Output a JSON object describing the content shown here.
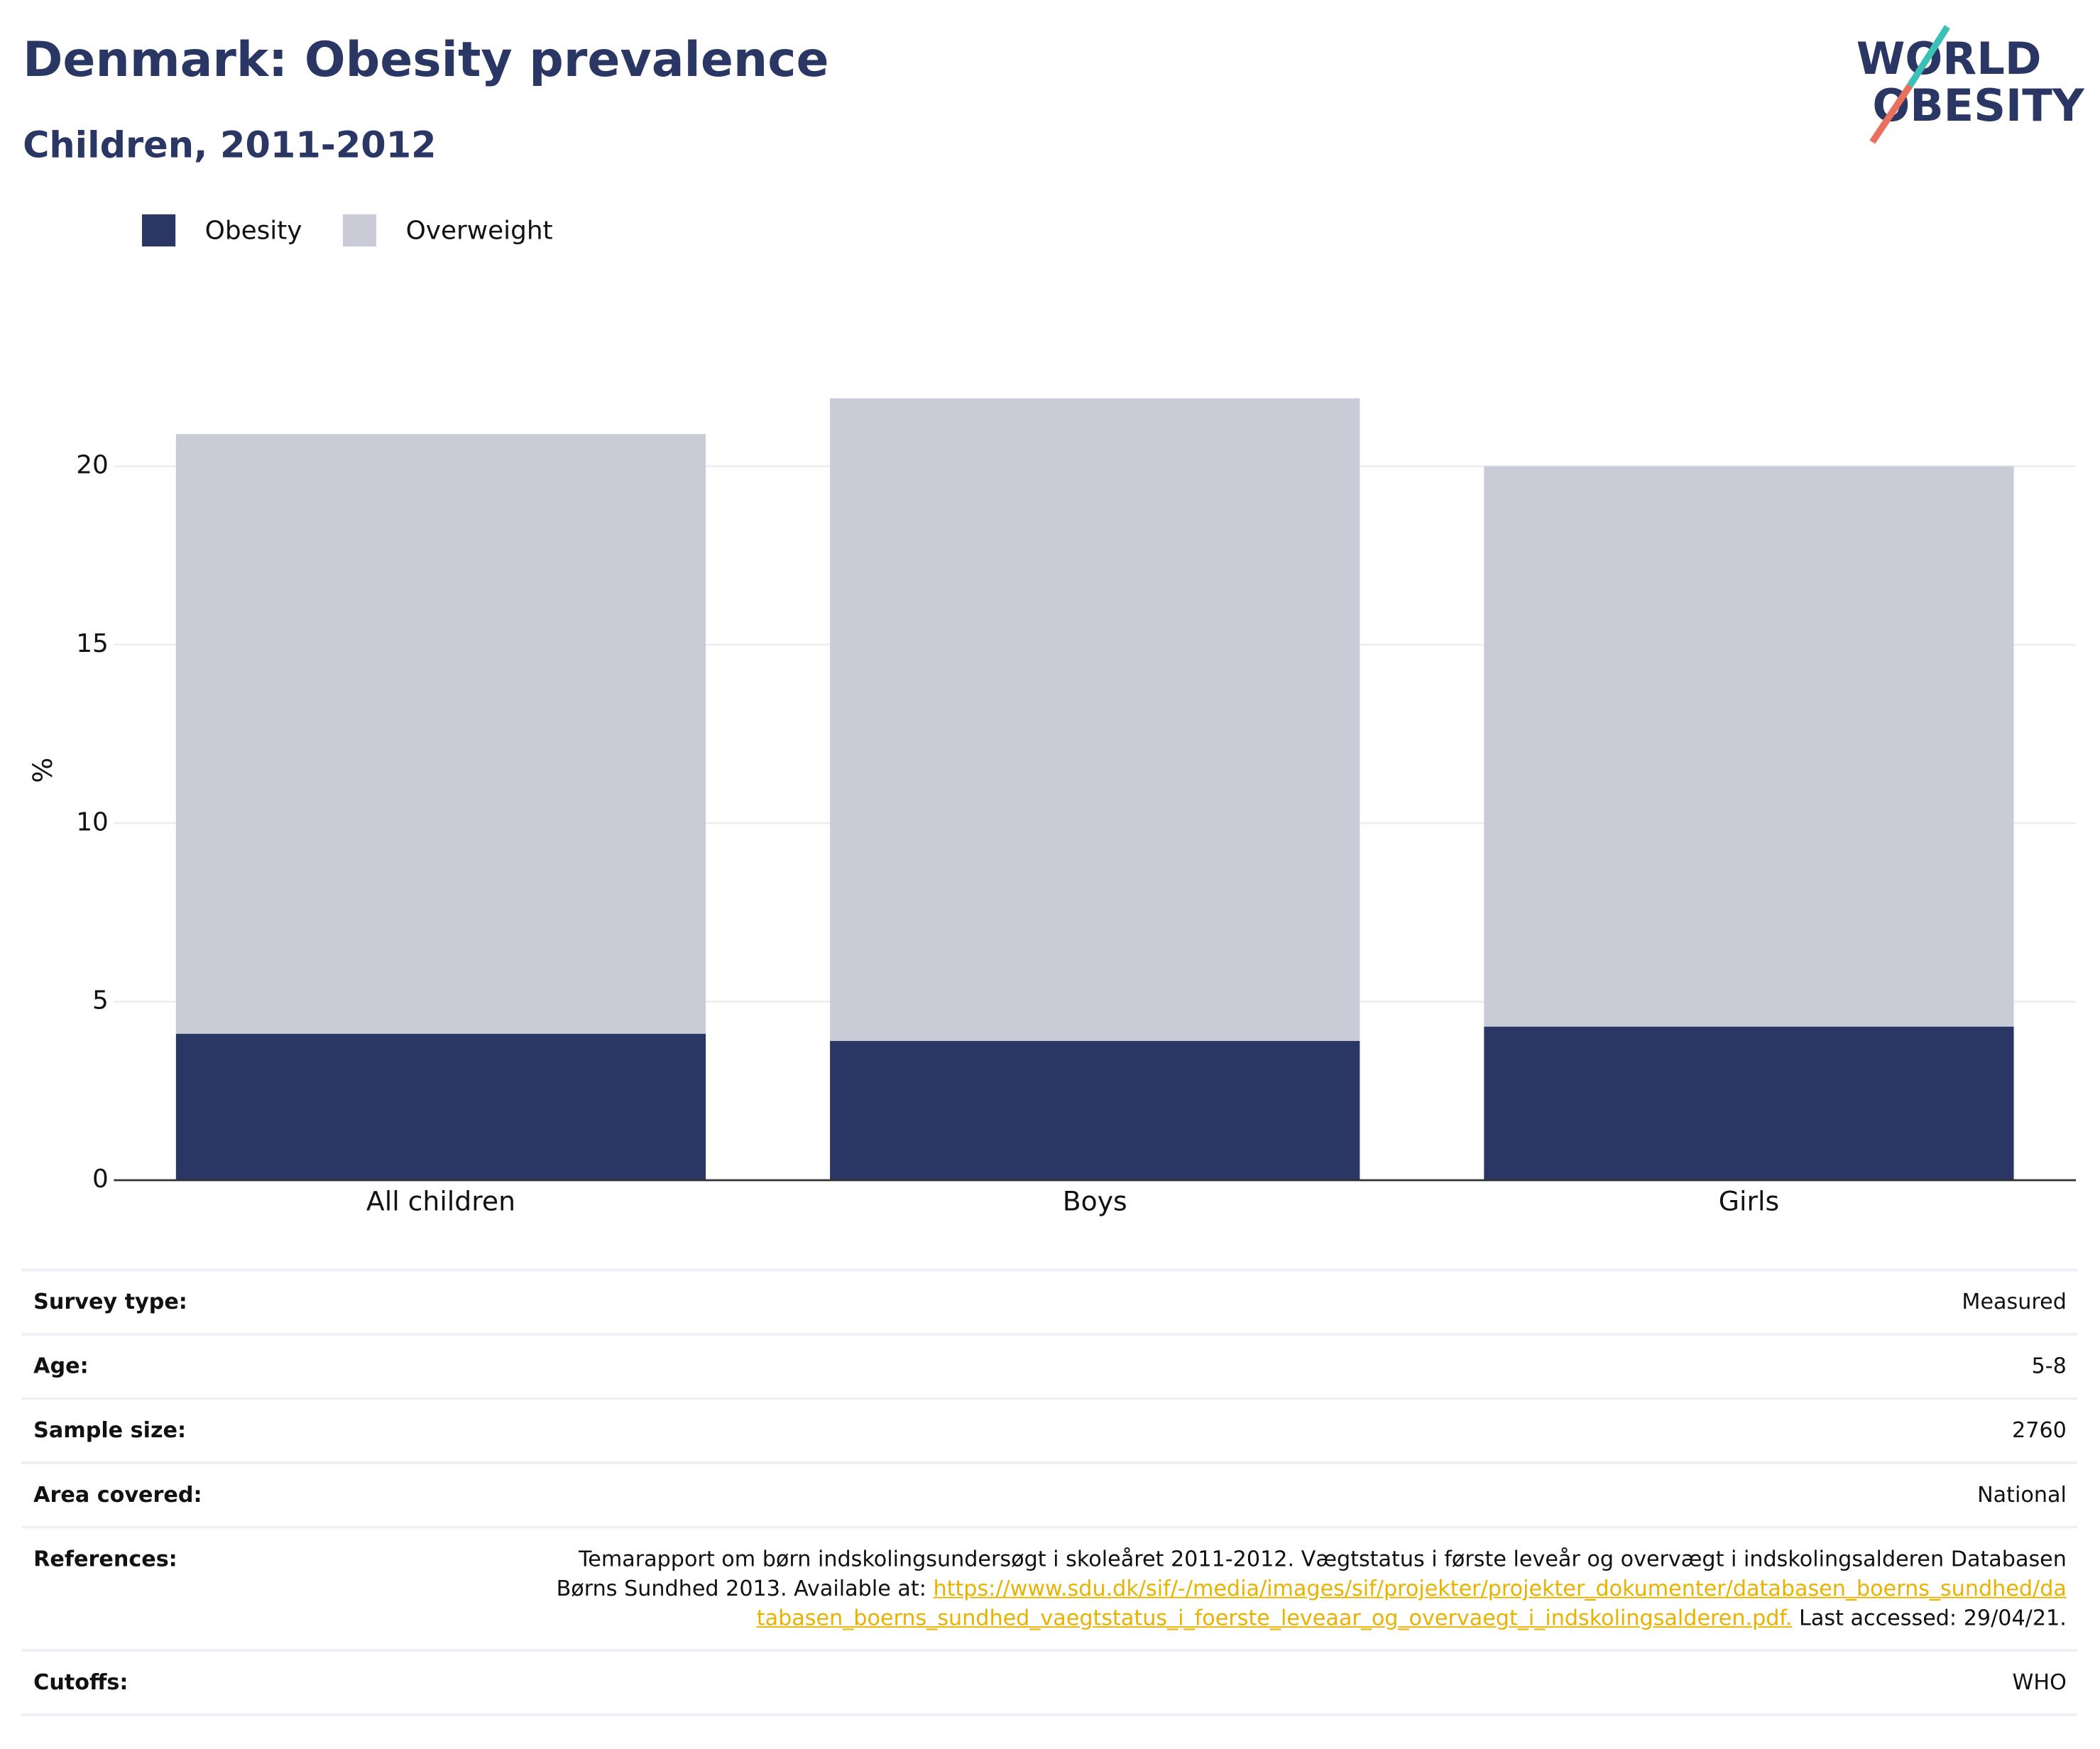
{
  "chart_data": {
    "type": "bar",
    "barmode": "overlay",
    "title": "Denmark: Obesity prevalence",
    "subtitle": "Children, 2011-2012",
    "y_label": "%",
    "categories": [
      "All children",
      "Boys",
      "Girls"
    ],
    "series": [
      {
        "name": "Obesity",
        "color": "#2a3765",
        "values": [
          4.1,
          3.9,
          4.3
        ]
      },
      {
        "name": "Overweight",
        "color": "#c9cbd7",
        "values": [
          20.9,
          21.9,
          20.0
        ]
      }
    ],
    "ylim": [
      0,
      25
    ],
    "yticks": [
      0,
      5,
      10,
      15,
      20
    ],
    "grid": true
  },
  "logo": {
    "line1": "WORLD",
    "line2": "OBESITY"
  },
  "table": {
    "rows": [
      {
        "label": "Survey type:",
        "value": "Measured"
      },
      {
        "label": "Age:",
        "value": "5-8"
      },
      {
        "label": "Sample size:",
        "value": "2760"
      },
      {
        "label": "Area covered:",
        "value": "National"
      },
      {
        "label": "References:",
        "value": "Temarapport om børn indskolingsundersøgt i skoleåret 2011-2012. Vægtstatus i første leveår og overvægt i indskolingsalderen Databasen Børns Sundhed 2013. Available at: ",
        "link": "https://www.sdu.dk/sif/-/media/images/sif/projekter/projekter_dokumenter/databasen_boerns_sundhed/databasen_boerns_sundhed_vaegtstatus_i_foerste_leveaar_og_overvaegt_i_indskolingsalderen.pdf.",
        "suffix": " Last accessed: 29/04/21."
      },
      {
        "label": "Cutoffs:",
        "value": "WHO"
      }
    ]
  }
}
